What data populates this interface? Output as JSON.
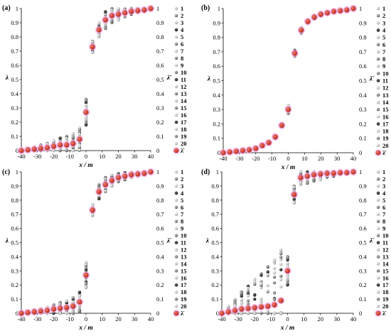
{
  "chart_data": [
    {
      "type": "scatter",
      "panel": "(a)",
      "xlabel": "x / m",
      "ylabel": "λ",
      "right_ylabel": "λ̄",
      "xlim": [
        -40,
        40
      ],
      "ylim": [
        0,
        1
      ],
      "xticks": [
        "-40",
        "-30",
        "-20",
        "-10",
        "0",
        "10",
        "20",
        "30",
        "40"
      ],
      "yticks": [
        "0",
        "0.1",
        "0.2",
        "0.3",
        "0.4",
        "0.5",
        "0.6",
        "0.7",
        "0.8",
        "0.9",
        "1"
      ],
      "legend": [
        "1",
        "2",
        "3",
        "4",
        "5",
        "6",
        "7",
        "8",
        "9",
        "10",
        "11",
        "12",
        "13",
        "14",
        "15",
        "16",
        "17",
        "18",
        "19",
        "20",
        "λ̄"
      ],
      "x": [
        -40,
        -36,
        -32,
        -28,
        -24,
        -20,
        -16,
        -12,
        -8,
        -4,
        0,
        4,
        8,
        12,
        16,
        20,
        24,
        28,
        32,
        36,
        40
      ],
      "mean": [
        0.0,
        0.005,
        0.01,
        0.015,
        0.02,
        0.03,
        0.04,
        0.04,
        0.05,
        0.08,
        0.27,
        0.73,
        0.85,
        0.92,
        0.95,
        0.96,
        0.97,
        0.98,
        0.985,
        0.99,
        1.0
      ],
      "spread": [
        0.002,
        0.01,
        0.015,
        0.025,
        0.03,
        0.04,
        0.05,
        0.06,
        0.07,
        0.08,
        0.09,
        0.04,
        0.05,
        0.06,
        0.05,
        0.04,
        0.03,
        0.02,
        0.015,
        0.01,
        0.002
      ]
    },
    {
      "type": "scatter",
      "panel": "(b)",
      "xlabel": "x / m",
      "ylabel": "λ",
      "right_ylabel": "λ̄",
      "xlim": [
        -40,
        40
      ],
      "ylim": [
        0,
        1
      ],
      "xticks": [
        "-40",
        "-30",
        "-20",
        "-10",
        "0",
        "10",
        "20",
        "30",
        "40"
      ],
      "yticks": [
        "0",
        "0.1",
        "0.2",
        "0.3",
        "0.4",
        "0.5",
        "0.6",
        "0.7",
        "0.8",
        "0.9",
        "1"
      ],
      "legend": [
        "1",
        "2",
        "3",
        "4",
        "5",
        "6",
        "7",
        "8",
        "9",
        "10",
        "11",
        "12",
        "13",
        "14",
        "15",
        "16",
        "17",
        "18",
        "19",
        "20",
        "λ̄"
      ],
      "x": [
        -40,
        -36,
        -32,
        -28,
        -24,
        -20,
        -16,
        -12,
        -8,
        -4,
        0,
        4,
        8,
        12,
        16,
        20,
        24,
        28,
        32,
        36,
        40
      ],
      "mean": [
        0.0,
        0.005,
        0.01,
        0.015,
        0.02,
        0.03,
        0.05,
        0.07,
        0.11,
        0.19,
        0.3,
        0.69,
        0.85,
        0.91,
        0.94,
        0.96,
        0.97,
        0.98,
        0.985,
        0.99,
        1.0
      ],
      "spread": [
        0.002,
        0.003,
        0.004,
        0.005,
        0.006,
        0.007,
        0.008,
        0.009,
        0.01,
        0.012,
        0.03,
        0.02,
        0.02,
        0.015,
        0.012,
        0.01,
        0.008,
        0.006,
        0.004,
        0.003,
        0.002
      ]
    },
    {
      "type": "scatter",
      "panel": "(c)",
      "xlabel": "x / m",
      "ylabel": "λ",
      "right_ylabel": "λ̄",
      "xlim": [
        -40,
        40
      ],
      "ylim": [
        0,
        1
      ],
      "xticks": [
        "-40",
        "-30",
        "-20",
        "-10",
        "0",
        "10",
        "20",
        "30",
        "40"
      ],
      "yticks": [
        "0",
        "0.1",
        "0.2",
        "0.3",
        "0.4",
        "0.5",
        "0.6",
        "0.7",
        "0.8",
        "0.9",
        "1"
      ],
      "legend": [
        "1",
        "2",
        "3",
        "4",
        "5",
        "6",
        "7",
        "8",
        "9",
        "10",
        "11",
        "12",
        "13",
        "14",
        "15",
        "16",
        "17",
        "18",
        "19",
        "20",
        "λ̄"
      ],
      "x": [
        -40,
        -36,
        -32,
        -28,
        -24,
        -20,
        -16,
        -12,
        -8,
        -4,
        0,
        4,
        8,
        12,
        16,
        20,
        24,
        28,
        32,
        36,
        40
      ],
      "mean": [
        0.0,
        0.005,
        0.01,
        0.015,
        0.02,
        0.03,
        0.035,
        0.04,
        0.05,
        0.08,
        0.27,
        0.73,
        0.86,
        0.91,
        0.94,
        0.96,
        0.97,
        0.98,
        0.985,
        0.99,
        1.0
      ],
      "spread": [
        0.002,
        0.008,
        0.012,
        0.02,
        0.025,
        0.03,
        0.04,
        0.05,
        0.06,
        0.07,
        0.09,
        0.04,
        0.05,
        0.05,
        0.04,
        0.03,
        0.025,
        0.02,
        0.015,
        0.01,
        0.002
      ]
    },
    {
      "type": "scatter",
      "panel": "(d)",
      "xlabel": "x / m",
      "ylabel": "λ",
      "right_ylabel": "λ̄",
      "xlim": [
        -40,
        40
      ],
      "ylim": [
        0,
        1
      ],
      "xticks": [
        "-40",
        "-30",
        "-20",
        "-10",
        "0",
        "10",
        "20",
        "30",
        "40"
      ],
      "yticks": [
        "0",
        "0.1",
        "0.2",
        "0.3",
        "0.4",
        "0.5",
        "0.6",
        "0.7",
        "0.8",
        "0.9",
        "1"
      ],
      "legend": [
        "1",
        "2",
        "3",
        "4",
        "5",
        "6",
        "7",
        "8",
        "9",
        "10",
        "11",
        "12",
        "13",
        "14",
        "15",
        "16",
        "17",
        "18",
        "19",
        "20",
        "λ̄"
      ],
      "x": [
        -40,
        -36,
        -32,
        -28,
        -24,
        -20,
        -16,
        -12,
        -8,
        -4,
        0,
        4,
        8,
        12,
        16,
        20,
        24,
        28,
        32,
        36,
        40
      ],
      "mean": [
        0.0,
        0.01,
        0.02,
        0.03,
        0.035,
        0.04,
        0.045,
        0.05,
        0.06,
        0.09,
        0.3,
        0.84,
        0.96,
        0.97,
        0.98,
        0.985,
        0.99,
        0.99,
        0.995,
        0.995,
        1.0
      ],
      "spread": [
        0.002,
        0.04,
        0.08,
        0.12,
        0.16,
        0.2,
        0.24,
        0.28,
        0.32,
        0.36,
        0.1,
        0.06,
        0.05,
        0.05,
        0.045,
        0.04,
        0.03,
        0.02,
        0.015,
        0.01,
        0.002
      ]
    }
  ],
  "colors": {
    "mean_marker": "#c62828",
    "mean_halo": "#f3a6e6",
    "axis": "#000000"
  }
}
